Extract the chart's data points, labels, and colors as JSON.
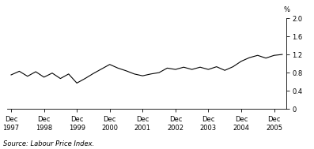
{
  "ylabel": "%",
  "source": "Source: Labour Price Index.",
  "ylim": [
    0,
    2.0
  ],
  "yticks": [
    0,
    0.4,
    0.8,
    1.2,
    1.6,
    2.0
  ],
  "ytick_labels": [
    "0",
    "0.4",
    "0.8",
    "1.2",
    "1.6",
    "2.0"
  ],
  "x_labels": [
    "Dec\n1997",
    "Dec\n1998",
    "Dec\n1999",
    "Dec\n2000",
    "Dec\n2001",
    "Dec\n2002",
    "Dec\n2003",
    "Dec\n2004",
    "Dec\n2005"
  ],
  "x_tick_positions": [
    0,
    4,
    8,
    12,
    16,
    20,
    24,
    28,
    32
  ],
  "n_points": 34,
  "values": [
    0.75,
    0.83,
    0.72,
    0.82,
    0.7,
    0.79,
    0.67,
    0.77,
    0.57,
    0.67,
    0.78,
    0.88,
    0.98,
    0.9,
    0.84,
    0.77,
    0.73,
    0.77,
    0.8,
    0.9,
    0.87,
    0.92,
    0.87,
    0.92,
    0.87,
    0.93,
    0.85,
    0.93,
    1.05,
    1.13,
    1.18,
    1.12,
    1.18,
    1.2
  ],
  "line_color": "#000000",
  "line_width": 0.8,
  "background_color": "#ffffff",
  "tick_label_fontsize": 6.0,
  "source_fontsize": 6.0
}
